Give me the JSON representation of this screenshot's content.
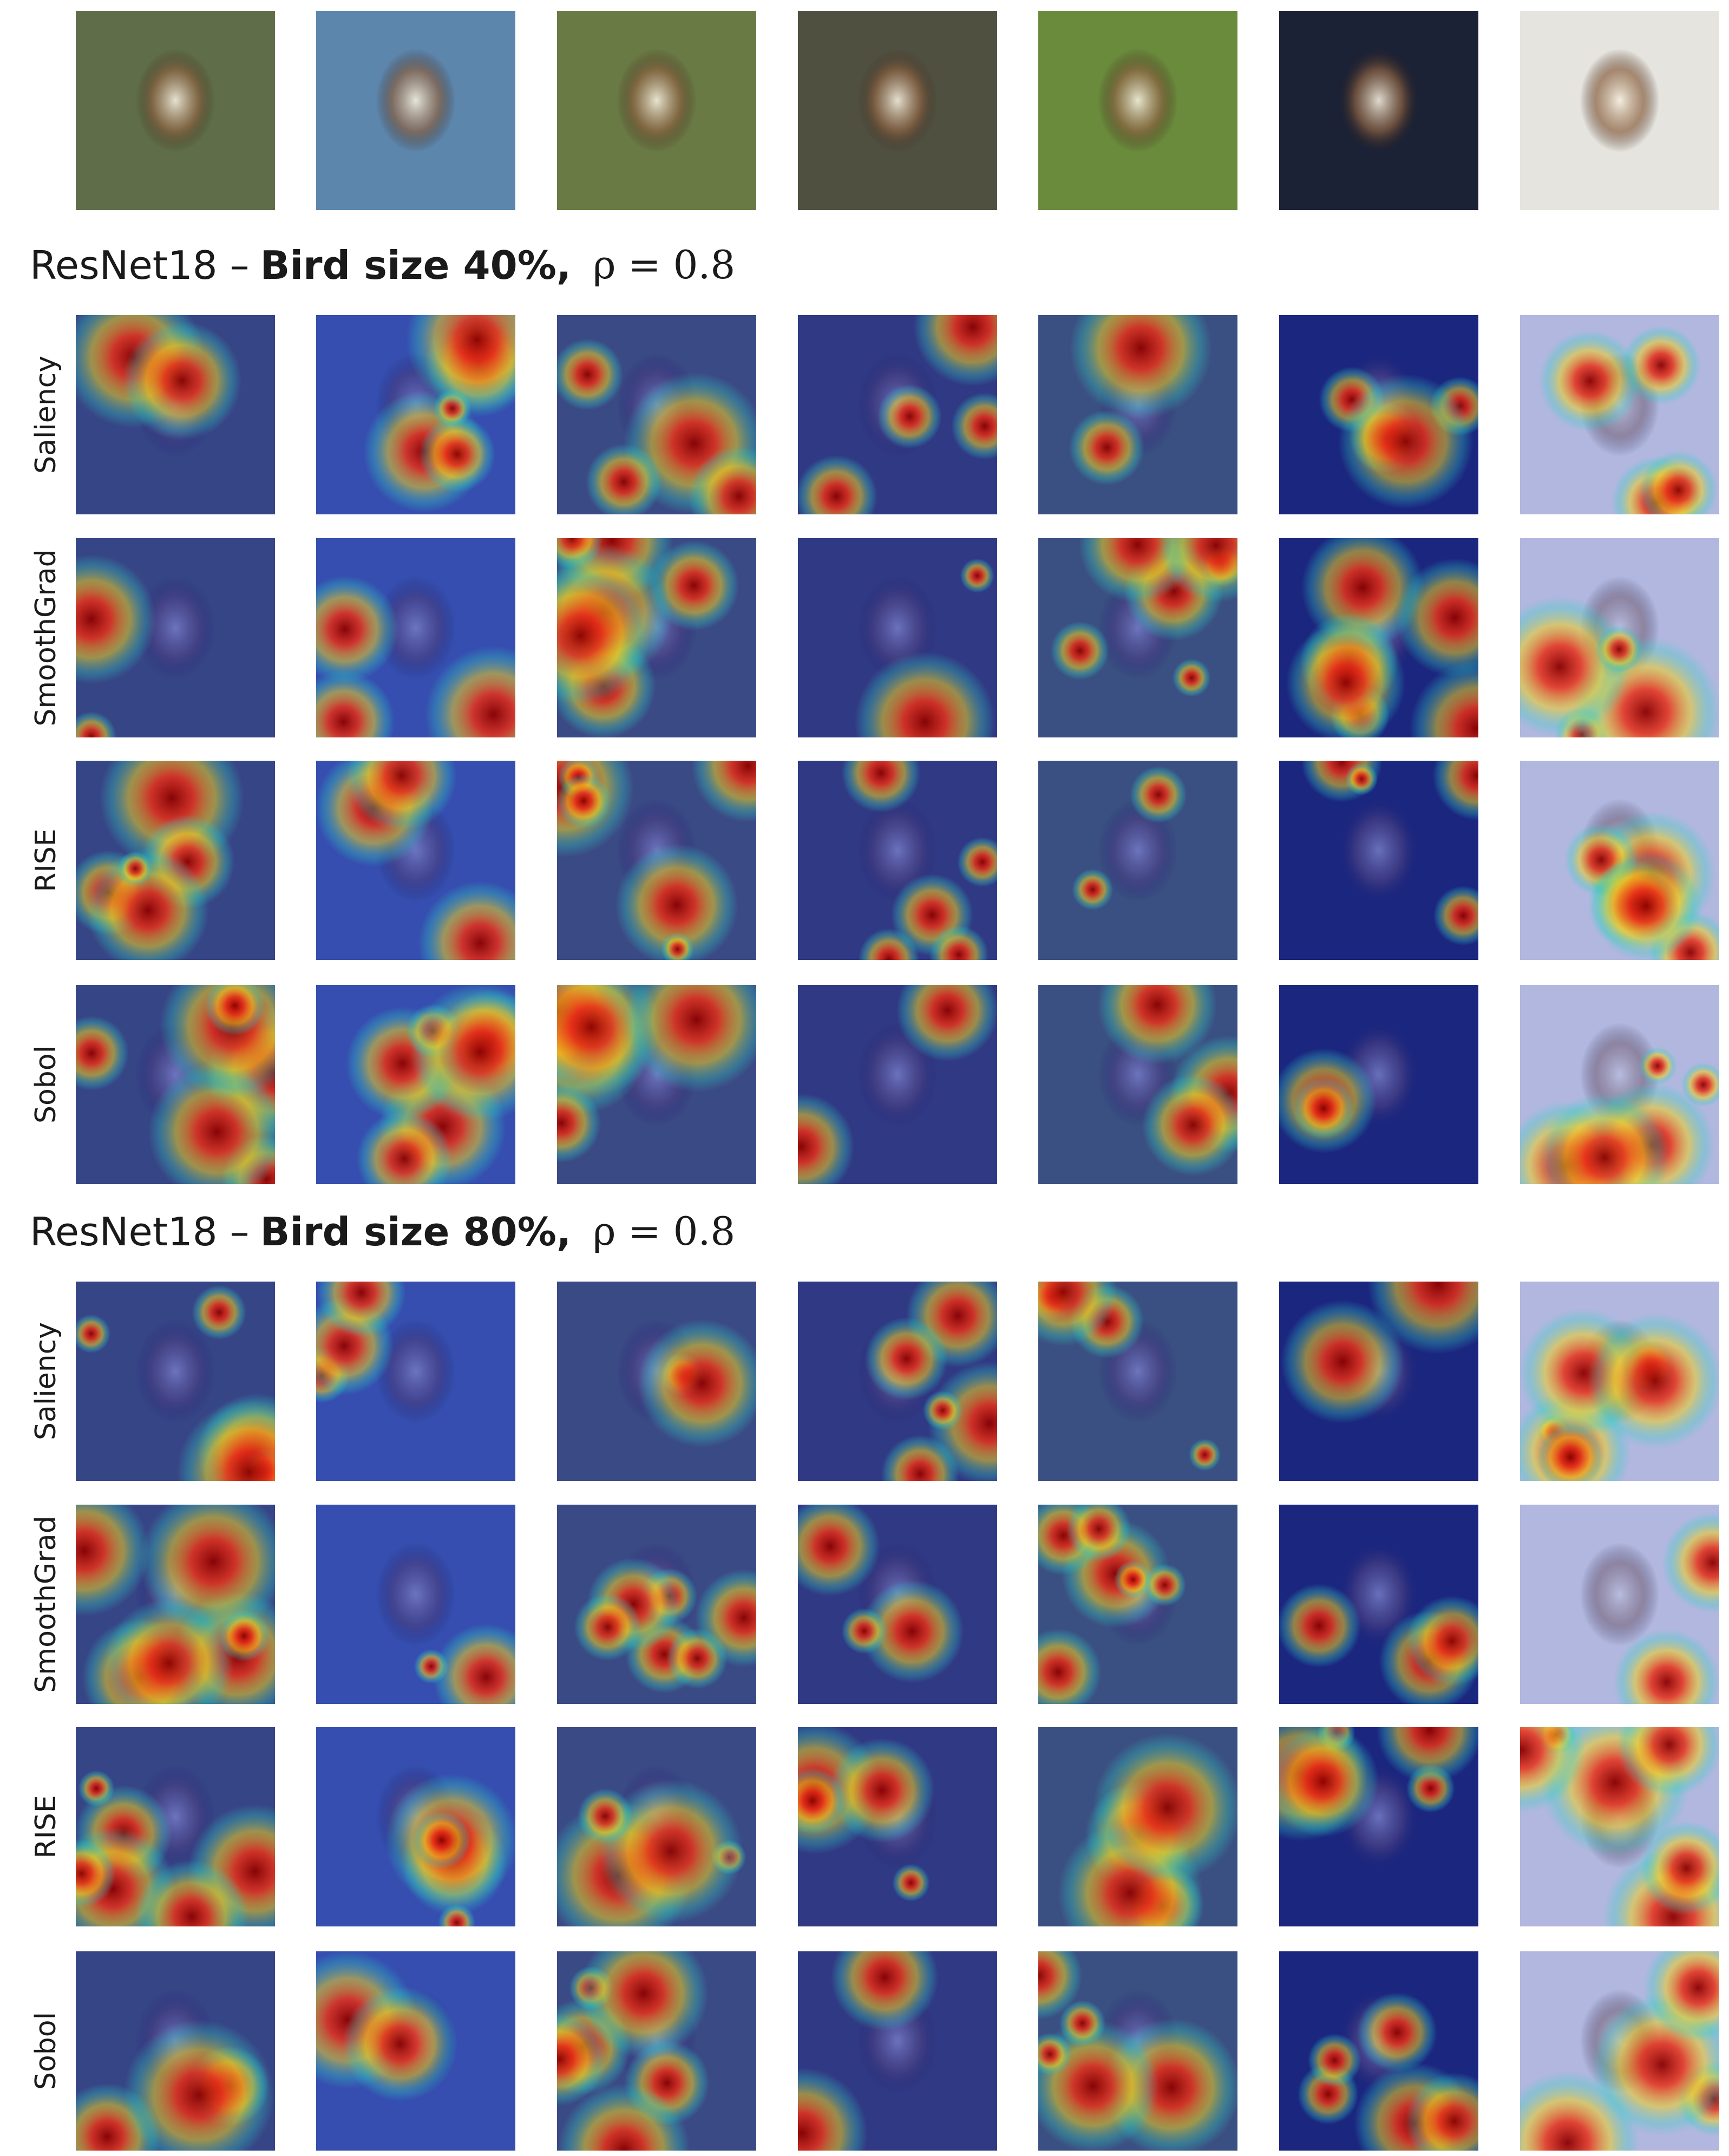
{
  "sections": [
    {
      "title": {
        "model": "ResNet18 –",
        "setting": "Bird size 40%,",
        "rho": "ρ = 0.8"
      },
      "rows": [
        "Saliency",
        "SmoothGrad",
        "RISE",
        "Sobol"
      ]
    },
    {
      "title": {
        "model": "ResNet18 –",
        "setting": "Bird size 80%,",
        "rho": "ρ = 0.8"
      },
      "rows": [
        "Saliency",
        "SmoothGrad",
        "RISE",
        "Sobol"
      ]
    }
  ]
}
